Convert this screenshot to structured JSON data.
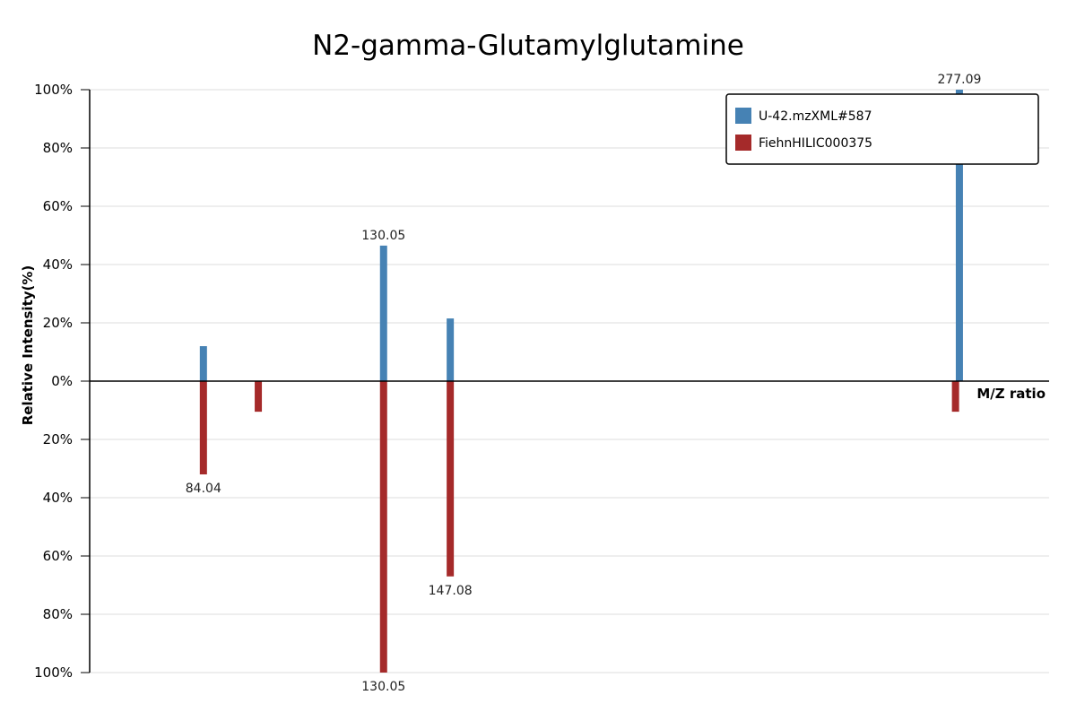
{
  "chart_data": {
    "type": "bar",
    "title": "N2-gamma-Glutamylglutamine",
    "xlabel": "M/Z ratio",
    "ylabel": "Relative Intensity(%)",
    "ylim": [
      -100,
      100
    ],
    "xlim": [
      55,
      300
    ],
    "y_ticks": [
      {
        "value": 100,
        "label": "100%"
      },
      {
        "value": 80,
        "label": "80%"
      },
      {
        "value": 60,
        "label": "60%"
      },
      {
        "value": 40,
        "label": "40%"
      },
      {
        "value": 20,
        "label": "20%"
      },
      {
        "value": 0,
        "label": "0%"
      },
      {
        "value": -20,
        "label": "20%"
      },
      {
        "value": -40,
        "label": "40%"
      },
      {
        "value": -60,
        "label": "60%"
      },
      {
        "value": -80,
        "label": "80%"
      },
      {
        "value": -100,
        "label": "100%"
      }
    ],
    "grid": true,
    "legend_position": "top-right",
    "series": [
      {
        "name": "U-42.mzXML#587",
        "color": "#4682b4",
        "direction": "up",
        "peaks": [
          {
            "mz": 84.04,
            "intensity": 12,
            "label": ""
          },
          {
            "mz": 130.05,
            "intensity": 46.5,
            "label": "130.05"
          },
          {
            "mz": 147.08,
            "intensity": 21.5,
            "label": ""
          },
          {
            "mz": 277.09,
            "intensity": 100,
            "label": "277.09"
          }
        ]
      },
      {
        "name": "FiehnHILIC000375",
        "color": "#a52a2a",
        "direction": "down",
        "peaks": [
          {
            "mz": 84.04,
            "intensity": 32,
            "label": "84.04"
          },
          {
            "mz": 98.06,
            "intensity": 10.5,
            "label": ""
          },
          {
            "mz": 130.05,
            "intensity": 100,
            "label": "130.05"
          },
          {
            "mz": 147.08,
            "intensity": 67,
            "label": "147.08"
          },
          {
            "mz": 276.1,
            "intensity": 10.5,
            "label": ""
          }
        ]
      }
    ]
  }
}
